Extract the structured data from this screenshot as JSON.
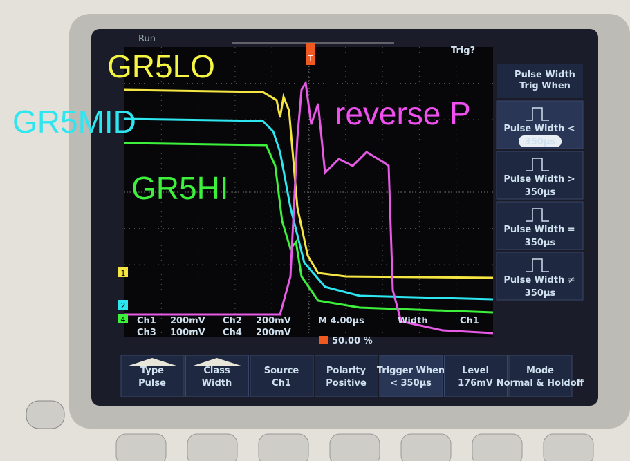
{
  "screen": {
    "status": "Run",
    "trigger_status": "Trig?",
    "trigger_marker": "T",
    "channel_markers": [
      "1",
      "2",
      "4"
    ]
  },
  "annotations": [
    {
      "text": "GR5LO",
      "color": "#f5f542"
    },
    {
      "text": "GR5MID",
      "color": "#2ee6f0"
    },
    {
      "text": "GR5HI",
      "color": "#3cf03c"
    },
    {
      "text": "reverse P",
      "color": "#f050f0"
    }
  ],
  "side_menu": {
    "title": [
      "Pulse Width",
      "Trig When"
    ],
    "items": [
      {
        "label": "Pulse Width <",
        "value": "350µs"
      },
      {
        "label": "Pulse Width >",
        "value": "350µs"
      },
      {
        "label": "Pulse Width =",
        "value": "350µs"
      },
      {
        "label": "Pulse Width ≠",
        "value": "350µs"
      }
    ]
  },
  "readout": {
    "channels": [
      {
        "name": "Ch1",
        "scale": "200mV"
      },
      {
        "name": "Ch2",
        "scale": "200mV"
      },
      {
        "name": "Ch3",
        "scale": "100mV"
      },
      {
        "name": "Ch4",
        "scale": "200mV"
      }
    ],
    "timebase": "M 4.00µs",
    "trigger_type": "Width",
    "trigger_source": "Ch1",
    "trigger_position": "50.00 %"
  },
  "bottom_menu": [
    {
      "label": "Type",
      "value": "Pulse"
    },
    {
      "label": "Class",
      "value": "Width"
    },
    {
      "label": "Source",
      "value": "Ch1"
    },
    {
      "label": "Polarity",
      "value": "Positive"
    },
    {
      "label": "Trigger When",
      "value": "< 350µs"
    },
    {
      "label": "Level",
      "value": "176mV"
    },
    {
      "label": "Mode",
      "value": "Normal & Holdoff"
    }
  ]
}
